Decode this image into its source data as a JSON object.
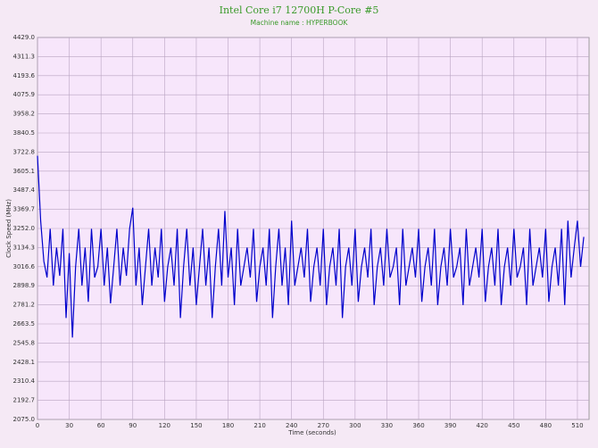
{
  "chart_data": {
    "type": "line",
    "title": "Intel Core i7 12700H P-Core #5",
    "subtitle": "Machine name : HYPERBOOK",
    "x_label": "Time (seconds)",
    "y_label": "Clock Speed (MHz)",
    "xlim": [
      0,
      521
    ],
    "ylim": [
      2075.0,
      4429.0
    ],
    "xticks": [
      0,
      30,
      60,
      90,
      120,
      150,
      180,
      210,
      240,
      270,
      300,
      330,
      360,
      390,
      420,
      450,
      480,
      510
    ],
    "yticks": [
      {
        "value": 2075.0,
        "label": "2075.0"
      },
      2192.7,
      2310.4,
      2428.1,
      2545.8,
      2663.5,
      2781.2,
      2898.9,
      3016.6,
      3134.3,
      {
        "value": 3252.0,
        "label": "3252.0"
      },
      3369.7,
      3487.4,
      3605.1,
      3722.8,
      3840.5,
      3958.2,
      4075.9,
      4193.6,
      4311.3,
      {
        "value": 4429.0,
        "label": "4429.0"
      }
    ],
    "grid": true,
    "x": [
      0,
      3,
      6,
      9,
      12,
      15,
      18,
      21,
      24,
      27,
      30,
      33,
      36,
      39,
      42,
      45,
      48,
      51,
      54,
      57,
      60,
      63,
      66,
      69,
      72,
      75,
      78,
      81,
      84,
      87,
      90,
      93,
      96,
      99,
      102,
      105,
      108,
      111,
      114,
      117,
      120,
      123,
      126,
      129,
      132,
      135,
      138,
      141,
      144,
      147,
      150,
      153,
      156,
      159,
      162,
      165,
      168,
      171,
      174,
      177,
      180,
      183,
      186,
      189,
      192,
      195,
      198,
      201,
      204,
      207,
      210,
      213,
      216,
      219,
      222,
      225,
      228,
      231,
      234,
      237,
      240,
      243,
      246,
      249,
      252,
      255,
      258,
      261,
      264,
      267,
      270,
      273,
      276,
      279,
      282,
      285,
      288,
      291,
      294,
      297,
      300,
      303,
      306,
      309,
      312,
      315,
      318,
      321,
      324,
      327,
      330,
      333,
      336,
      339,
      342,
      345,
      348,
      351,
      354,
      357,
      360,
      363,
      366,
      369,
      372,
      375,
      378,
      381,
      384,
      387,
      390,
      393,
      396,
      399,
      402,
      405,
      408,
      411,
      414,
      417,
      420,
      423,
      426,
      429,
      432,
      435,
      438,
      441,
      444,
      447,
      450,
      453,
      456,
      459,
      462,
      465,
      468,
      471,
      474,
      477,
      480,
      483,
      486,
      489,
      492,
      495,
      498,
      501,
      504,
      507,
      510,
      513,
      516
    ],
    "series": [
      {
        "name": "P-Core #5",
        "color": "#0000cc",
        "values": [
          3700,
          3300,
          3050,
          2950,
          3250,
          2900,
          3134,
          2960,
          3250,
          2700,
          3100,
          2580,
          3016,
          3250,
          2900,
          3134,
          2800,
          3250,
          2950,
          3016,
          3250,
          2900,
          3134,
          2790,
          3016,
          3250,
          2900,
          3134,
          2960,
          3250,
          3380,
          2900,
          3134,
          2780,
          3016,
          3250,
          2900,
          3134,
          2950,
          3250,
          2800,
          3016,
          3134,
          2900,
          3250,
          2700,
          3016,
          3250,
          2900,
          3134,
          2780,
          3016,
          3250,
          2900,
          3134,
          2700,
          3016,
          3250,
          2900,
          3360,
          2950,
          3134,
          2780,
          3250,
          2900,
          3016,
          3134,
          2950,
          3250,
          2800,
          3016,
          3134,
          2900,
          3250,
          2700,
          3016,
          3250,
          2900,
          3134,
          2780,
          3300,
          2900,
          3016,
          3134,
          2950,
          3250,
          2800,
          3016,
          3134,
          2900,
          3250,
          2780,
          3016,
          3134,
          2900,
          3250,
          2700,
          3016,
          3134,
          2900,
          3250,
          2800,
          3016,
          3134,
          2950,
          3250,
          2780,
          3016,
          3134,
          2900,
          3250,
          2950,
          3016,
          3134,
          2780,
          3250,
          2900,
          3016,
          3134,
          2950,
          3250,
          2800,
          3016,
          3134,
          2900,
          3250,
          2780,
          3016,
          3134,
          2900,
          3250,
          2950,
          3016,
          3134,
          2780,
          3250,
          2900,
          3016,
          3134,
          2950,
          3250,
          2800,
          3016,
          3134,
          2900,
          3250,
          2780,
          3016,
          3134,
          2900,
          3250,
          2950,
          3016,
          3134,
          2780,
          3250,
          2900,
          3016,
          3134,
          2950,
          3250,
          2800,
          3016,
          3134,
          2900,
          3250,
          2780,
          3300,
          2950,
          3134,
          3300,
          3016,
          3200
        ]
      }
    ]
  }
}
